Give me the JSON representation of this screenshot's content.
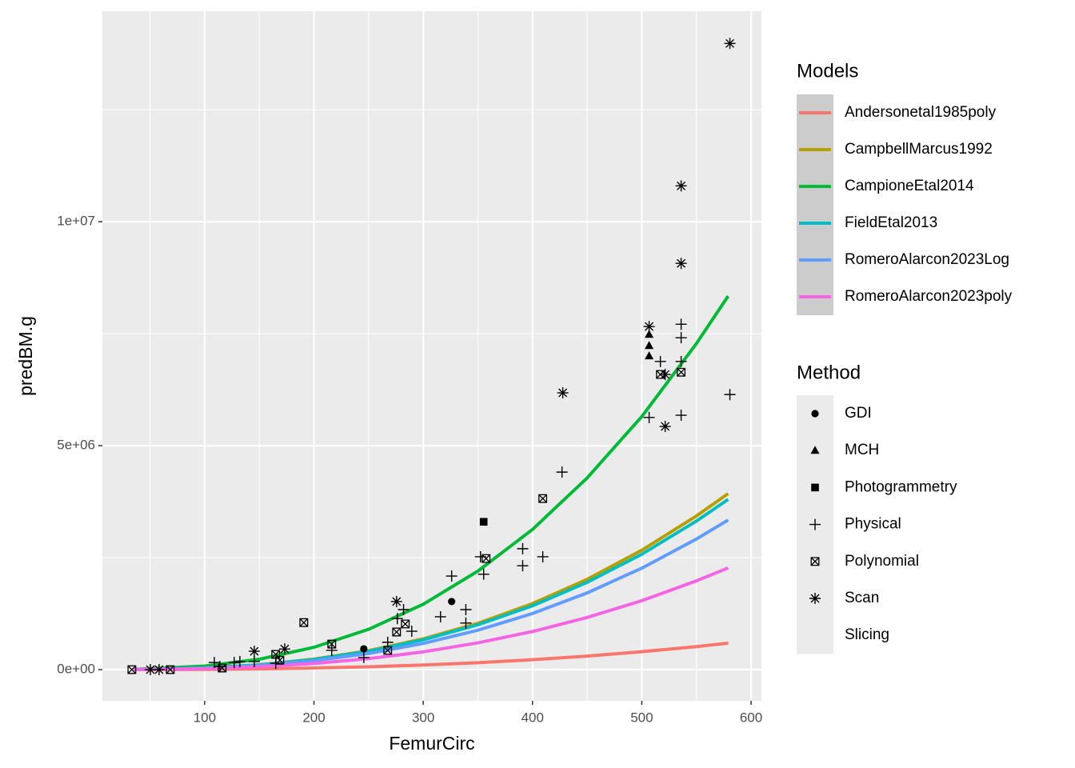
{
  "chart_data": {
    "type": "line",
    "x_label": "FemurCirc",
    "y_label": "predBM.g",
    "xlim": [
      6.4,
      609.5
    ],
    "ylim": [
      -696000,
      14700000
    ],
    "xticks": [
      100,
      200,
      300,
      400,
      500,
      600
    ],
    "yticks": [
      {
        "value": 0,
        "label": "0e+00"
      },
      {
        "value": 5000000,
        "label": "5e+06"
      },
      {
        "value": 10000000,
        "label": "1e+07"
      }
    ],
    "xminorticks": [
      50,
      150,
      250,
      350,
      450,
      550
    ],
    "yminorticks": [
      2500000,
      7500000,
      12500000
    ],
    "grid": true,
    "legend_title": "Models",
    "series": [
      {
        "name": "Andersonetal1985poly",
        "color": "#F8766D",
        "x": [
          35,
          100,
          150,
          200,
          250,
          300,
          350,
          400,
          450,
          500,
          550,
          579
        ],
        "values": [
          350,
          5600,
          16500,
          35300,
          63700,
          103000,
          155000,
          221000,
          303000,
          400000,
          515000,
          590000
        ]
      },
      {
        "name": "CampbellMarcus1992",
        "color": "#B79F00",
        "x": [
          35,
          100,
          150,
          200,
          250,
          300,
          350,
          400,
          450,
          500,
          550,
          579
        ],
        "values": [
          2300,
          37400,
          110000,
          235000,
          424000,
          688000,
          1035000,
          1474000,
          2016000,
          2665000,
          3431000,
          3930000
        ]
      },
      {
        "name": "CampioneEtal2014",
        "color": "#00BA38",
        "x": [
          35,
          100,
          150,
          200,
          250,
          300,
          350,
          400,
          450,
          500,
          550,
          579
        ],
        "values": [
          4900,
          79400,
          232000,
          499000,
          900000,
          1460000,
          2200000,
          3130000,
          4280000,
          5650000,
          7280000,
          8340000
        ]
      },
      {
        "name": "FieldEtal2013",
        "color": "#00BFC4",
        "x": [
          35,
          100,
          150,
          200,
          250,
          300,
          350,
          400,
          450,
          500,
          550,
          579
        ],
        "values": [
          2200,
          36200,
          106000,
          227000,
          410000,
          665000,
          1001000,
          1425000,
          1949000,
          2576000,
          3317000,
          3800000
        ]
      },
      {
        "name": "RomeroAlarcon2023Log",
        "color": "#619CFF",
        "x": [
          35,
          100,
          150,
          200,
          250,
          300,
          350,
          400,
          450,
          500,
          550,
          579
        ],
        "values": [
          2000,
          31800,
          93200,
          200000,
          360000,
          585000,
          880000,
          1253000,
          1713000,
          2265000,
          2916000,
          3340000
        ]
      },
      {
        "name": "RomeroAlarcon2023poly",
        "color": "#F564E3",
        "x": [
          35,
          100,
          150,
          200,
          250,
          300,
          350,
          400,
          450,
          500,
          550,
          579
        ],
        "values": [
          1300,
          21600,
          63300,
          136000,
          245000,
          397000,
          598000,
          851000,
          1165000,
          1539000,
          1982000,
          2270000
        ]
      }
    ],
    "scatter_legend_title": "Method",
    "scatter_color": "#000000",
    "scatter_series": [
      {
        "name": "GDI",
        "shape": "circle",
        "x": [
          245.6,
          326
        ],
        "values": [
          464000,
          1520000
        ]
      },
      {
        "name": "MCH",
        "shape": "triangle",
        "x": [
          506.7,
          506.7,
          506.7
        ],
        "values": [
          7480000,
          7230000,
          7000000
        ]
      },
      {
        "name": "Photogrammetry",
        "shape": "square",
        "x": [
          355.3
        ],
        "values": [
          3300000
        ]
      },
      {
        "name": "Physical",
        "shape": "plus",
        "x": [
          580.6,
          536,
          536,
          536,
          536,
          517,
          506.7,
          427,
          409.4,
          391,
          391,
          352.4,
          355.3,
          326,
          315.8,
          339,
          339,
          282,
          289.5,
          276.3,
          267.5,
          245.6,
          216.3,
          165,
          145.4,
          132.2,
          127,
          108.8,
          113.9
        ],
        "values": [
          6140000,
          7710000,
          7410000,
          6880000,
          5680000,
          6880000,
          5630000,
          4410000,
          2520000,
          2700000,
          2320000,
          2520000,
          2130000,
          2090000,
          1180000,
          1340000,
          1040000,
          1340000,
          857000,
          1140000,
          610000,
          270000,
          430000,
          140000,
          180000,
          180000,
          160000,
          160000,
          70000
        ]
      },
      {
        "name": "Polynomial",
        "shape": "boxx",
        "x": [
          33.4,
          68.5,
          116,
          165,
          168.8,
          190.7,
          216.3,
          267.5,
          275.6,
          283.6,
          357.5,
          409.4,
          517,
          536
        ],
        "values": [
          0,
          0,
          36000,
          340000,
          210000,
          1050000,
          570000,
          430000,
          840000,
          1020000,
          2480000,
          3820000,
          6590000,
          6640000
        ]
      },
      {
        "name": "Scan",
        "shape": "asterisk",
        "x": [
          580.6,
          536,
          536,
          506.7,
          427.7,
          521.4,
          521.4,
          275.6,
          173.2,
          145.4,
          50.3,
          58.3
        ],
        "values": [
          13980000,
          10800000,
          9070000,
          7660000,
          6180000,
          6590000,
          5430000,
          1520000,
          460000,
          410000,
          0,
          0
        ]
      },
      {
        "name": "Slicing",
        "shape": "none",
        "x": [],
        "values": []
      }
    ]
  }
}
